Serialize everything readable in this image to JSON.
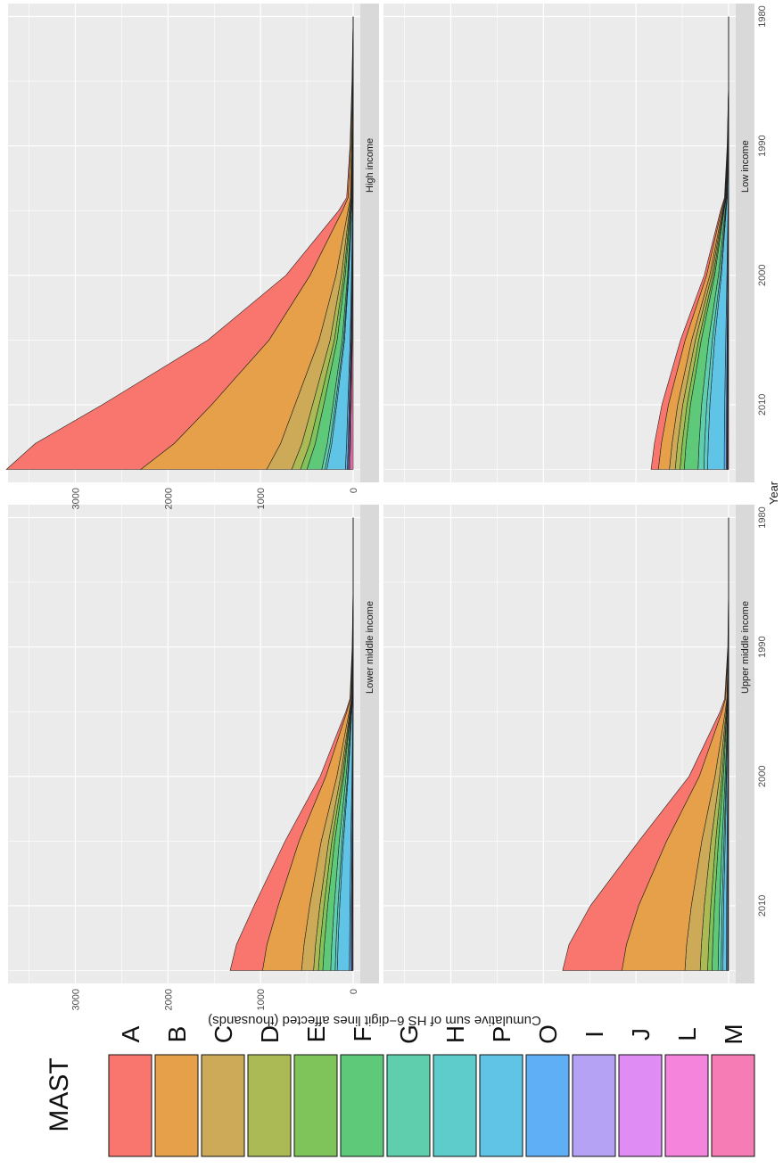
{
  "chart_data": {
    "type": "area",
    "stacked": true,
    "layout": "2x2 facets, figure rotated 90 degrees",
    "xlabel": "Year",
    "ylabel": "Cumulative sum of HS 6−digit lines affected (thousands)",
    "x_ticks": [
      1980,
      1990,
      2000,
      2010
    ],
    "y_ticks": [
      0,
      1000,
      2000,
      3000
    ],
    "xlim": [
      1979,
      2016
    ],
    "ylim": [
      0,
      3650
    ],
    "grid": true,
    "legend": {
      "title": "MAST",
      "placement": "left",
      "entries": [
        {
          "key": "A",
          "color": "#F8766D"
        },
        {
          "key": "B",
          "color": "#E7A04A"
        },
        {
          "key": "C",
          "color": "#CDAA57"
        },
        {
          "key": "D",
          "color": "#ABBA55"
        },
        {
          "key": "E",
          "color": "#7FC45A"
        },
        {
          "key": "F",
          "color": "#5DC979"
        },
        {
          "key": "G",
          "color": "#5FCEAD"
        },
        {
          "key": "H",
          "color": "#5DCCCB"
        },
        {
          "key": "P",
          "color": "#5FC4E6"
        },
        {
          "key": "O",
          "color": "#5FAFF6"
        },
        {
          "key": "I",
          "color": "#B6A2F5"
        },
        {
          "key": "J",
          "color": "#E08CF5"
        },
        {
          "key": "L",
          "color": "#F584DD"
        },
        {
          "key": "M",
          "color": "#F67CB5"
        }
      ]
    },
    "years": [
      1980,
      1985,
      1990,
      1994,
      1995,
      2000,
      2005,
      2010,
      2013,
      2015
    ],
    "panels": [
      {
        "title": "High income",
        "series": [
          {
            "name": "A",
            "values": [
              0,
              2,
              6,
              15,
              40,
              260,
              660,
              1180,
              1500,
              1450
            ]
          },
          {
            "name": "B",
            "values": [
              0,
              5,
              12,
              25,
              60,
              280,
              540,
              900,
              1150,
              1360
            ]
          },
          {
            "name": "C",
            "values": [
              0,
              2,
              4,
              8,
              15,
              60,
              120,
              190,
              230,
              270
            ]
          },
          {
            "name": "D",
            "values": [
              0,
              1,
              2,
              4,
              8,
              25,
              45,
              70,
              85,
              95
            ]
          },
          {
            "name": "E",
            "values": [
              0,
              1,
              2,
              3,
              5,
              15,
              30,
              50,
              60,
              70
            ]
          },
          {
            "name": "F",
            "values": [
              0,
              1,
              2,
              4,
              8,
              25,
              55,
              100,
              130,
              160
            ]
          },
          {
            "name": "G",
            "values": [
              0,
              0,
              1,
              2,
              3,
              8,
              15,
              25,
              30,
              35
            ]
          },
          {
            "name": "H",
            "values": [
              0,
              0,
              1,
              1,
              2,
              5,
              10,
              15,
              18,
              20
            ]
          },
          {
            "name": "P",
            "values": [
              0,
              1,
              2,
              4,
              8,
              30,
              60,
              120,
              160,
              200
            ]
          },
          {
            "name": "O",
            "values": [
              0,
              0,
              1,
              1,
              2,
              5,
              10,
              15,
              18,
              20
            ]
          },
          {
            "name": "I",
            "values": [
              0,
              0,
              0,
              1,
              1,
              3,
              5,
              8,
              10,
              12
            ]
          },
          {
            "name": "J",
            "values": [
              0,
              0,
              0,
              0,
              1,
              2,
              3,
              5,
              6,
              7
            ]
          },
          {
            "name": "L",
            "values": [
              0,
              0,
              0,
              1,
              1,
              3,
              5,
              10,
              12,
              15
            ]
          },
          {
            "name": "M",
            "values": [
              0,
              0,
              1,
              1,
              2,
              5,
              10,
              20,
              25,
              30
            ]
          }
        ]
      },
      {
        "title": "Low income",
        "series": [
          {
            "name": "A",
            "values": [
              0,
              0,
              2,
              5,
              10,
              25,
              50,
              70,
              75,
              78
            ]
          },
          {
            "name": "B",
            "values": [
              0,
              0,
              2,
              6,
              12,
              35,
              70,
              100,
              115,
              120
            ]
          },
          {
            "name": "C",
            "values": [
              0,
              0,
              1,
              3,
              6,
              20,
              40,
              55,
              60,
              62
            ]
          },
          {
            "name": "D",
            "values": [
              0,
              0,
              1,
              3,
              6,
              18,
              35,
              45,
              50,
              52
            ]
          },
          {
            "name": "E",
            "values": [
              0,
              0,
              1,
              2,
              5,
              15,
              28,
              38,
              42,
              45
            ]
          },
          {
            "name": "F",
            "values": [
              0,
              0,
              2,
              6,
              12,
              40,
              80,
              120,
              140,
              150
            ]
          },
          {
            "name": "G",
            "values": [
              0,
              0,
              1,
              3,
              6,
              20,
              40,
              55,
              60,
              63
            ]
          },
          {
            "name": "H",
            "values": [
              0,
              0,
              1,
              2,
              4,
              12,
              25,
              35,
              38,
              40
            ]
          },
          {
            "name": "P",
            "values": [
              0,
              0,
              3,
              10,
              20,
              60,
              120,
              160,
              175,
              180
            ]
          },
          {
            "name": "O",
            "values": [
              0,
              0,
              1,
              2,
              3,
              8,
              15,
              20,
              22,
              23
            ]
          },
          {
            "name": "I",
            "values": [
              0,
              0,
              0,
              1,
              1,
              3,
              5,
              7,
              8,
              8
            ]
          },
          {
            "name": "J",
            "values": [
              0,
              0,
              0,
              0,
              1,
              2,
              3,
              4,
              4,
              4
            ]
          },
          {
            "name": "L",
            "values": [
              0,
              0,
              0,
              0,
              1,
              2,
              3,
              4,
              4,
              4
            ]
          },
          {
            "name": "M",
            "values": [
              0,
              0,
              0,
              1,
              1,
              3,
              5,
              7,
              8,
              8
            ]
          }
        ]
      },
      {
        "title": "Lower middle income",
        "series": [
          {
            "name": "A",
            "values": [
              0,
              0,
              2,
              6,
              12,
              60,
              150,
              260,
              330,
              350
            ]
          },
          {
            "name": "B",
            "values": [
              0,
              0,
              3,
              10,
              25,
              120,
              240,
              340,
              400,
              420
            ]
          },
          {
            "name": "C",
            "values": [
              0,
              0,
              1,
              4,
              8,
              40,
              80,
              110,
              125,
              130
            ]
          },
          {
            "name": "D",
            "values": [
              0,
              0,
              1,
              2,
              5,
              20,
              35,
              45,
              50,
              52
            ]
          },
          {
            "name": "E",
            "values": [
              0,
              0,
              1,
              2,
              4,
              15,
              30,
              40,
              45,
              48
            ]
          },
          {
            "name": "F",
            "values": [
              0,
              0,
              1,
              3,
              6,
              25,
              50,
              70,
              80,
              85
            ]
          },
          {
            "name": "G",
            "values": [
              0,
              0,
              1,
              2,
              4,
              15,
              30,
              40,
              45,
              48
            ]
          },
          {
            "name": "H",
            "values": [
              0,
              0,
              0,
              1,
              2,
              8,
              15,
              20,
              22,
              24
            ]
          },
          {
            "name": "P",
            "values": [
              0,
              0,
              1,
              4,
              10,
              40,
              80,
              110,
              125,
              130
            ]
          },
          {
            "name": "O",
            "values": [
              0,
              0,
              0,
              1,
              2,
              6,
              12,
              16,
              18,
              20
            ]
          },
          {
            "name": "I",
            "values": [
              0,
              0,
              0,
              0,
              1,
              3,
              5,
              7,
              8,
              8
            ]
          },
          {
            "name": "J",
            "values": [
              0,
              0,
              0,
              0,
              0,
              1,
              2,
              3,
              3,
              3
            ]
          },
          {
            "name": "L",
            "values": [
              0,
              0,
              0,
              0,
              0,
              1,
              2,
              3,
              3,
              3
            ]
          },
          {
            "name": "M",
            "values": [
              0,
              0,
              0,
              0,
              1,
              2,
              4,
              6,
              7,
              7
            ]
          }
        ]
      },
      {
        "title": "Upper middle income",
        "series": [
          {
            "name": "A",
            "values": [
              0,
              0,
              2,
              8,
              20,
              110,
              300,
              520,
              620,
              640
            ]
          },
          {
            "name": "B",
            "values": [
              0,
              0,
              3,
              15,
              35,
              170,
              380,
              570,
              650,
              680
            ]
          },
          {
            "name": "C",
            "values": [
              0,
              0,
              1,
              5,
              10,
              50,
              100,
              140,
              160,
              165
            ]
          },
          {
            "name": "D",
            "values": [
              0,
              0,
              1,
              3,
              6,
              25,
              50,
              70,
              78,
              80
            ]
          },
          {
            "name": "E",
            "values": [
              0,
              0,
              1,
              2,
              4,
              15,
              30,
              40,
              45,
              48
            ]
          },
          {
            "name": "F",
            "values": [
              0,
              0,
              1,
              3,
              6,
              20,
              40,
              55,
              62,
              65
            ]
          },
          {
            "name": "G",
            "values": [
              0,
              0,
              0,
              2,
              3,
              10,
              20,
              28,
              32,
              33
            ]
          },
          {
            "name": "H",
            "values": [
              0,
              0,
              0,
              1,
              2,
              6,
              12,
              16,
              18,
              19
            ]
          },
          {
            "name": "P",
            "values": [
              0,
              0,
              0,
              2,
              4,
              12,
              22,
              32,
              36,
              38
            ]
          },
          {
            "name": "O",
            "values": [
              0,
              0,
              0,
              1,
              1,
              4,
              8,
              10,
              11,
              12
            ]
          },
          {
            "name": "I",
            "values": [
              0,
              0,
              0,
              0,
              1,
              2,
              3,
              4,
              4,
              4
            ]
          },
          {
            "name": "J",
            "values": [
              0,
              0,
              0,
              0,
              0,
              1,
              2,
              3,
              3,
              3
            ]
          },
          {
            "name": "L",
            "values": [
              0,
              0,
              0,
              0,
              0,
              1,
              1,
              2,
              2,
              2
            ]
          },
          {
            "name": "M",
            "values": [
              0,
              0,
              0,
              0,
              0,
              1,
              2,
              3,
              3,
              3
            ]
          }
        ]
      }
    ]
  }
}
